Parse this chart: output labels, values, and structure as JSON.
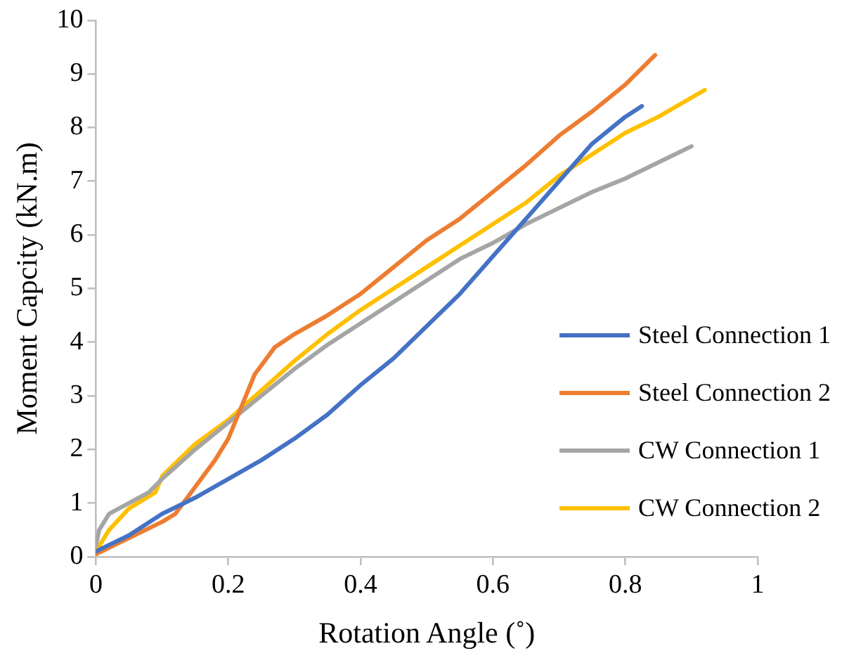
{
  "chart_data": {
    "type": "line",
    "xlabel": "Rotation Angle (˚)",
    "ylabel": "Moment Capcity (kN.m)",
    "xlim": [
      0,
      1
    ],
    "xticks": [
      0,
      0.2,
      0.4,
      0.6,
      0.8,
      1
    ],
    "ylim": [
      0,
      10
    ],
    "yticks": [
      0,
      1,
      2,
      3,
      4,
      5,
      6,
      7,
      8,
      9,
      10
    ],
    "grid": false,
    "legend": "right",
    "marker": "none",
    "line_style": "solid",
    "series": [
      {
        "name": "Steel Connection 1",
        "color": "#4472c4",
        "x": [
          0,
          0.05,
          0.1,
          0.15,
          0.2,
          0.25,
          0.3,
          0.35,
          0.4,
          0.45,
          0.5,
          0.55,
          0.6,
          0.65,
          0.7,
          0.75,
          0.8,
          0.825
        ],
        "values": [
          0.1,
          0.4,
          0.8,
          1.1,
          1.45,
          1.8,
          2.2,
          2.65,
          3.2,
          3.7,
          4.3,
          4.9,
          5.6,
          6.3,
          7.0,
          7.7,
          8.2,
          8.4
        ]
      },
      {
        "name": "Steel Connection 2",
        "color": "#ed7d31",
        "x": [
          0,
          0.05,
          0.1,
          0.12,
          0.15,
          0.18,
          0.2,
          0.22,
          0.24,
          0.27,
          0.3,
          0.35,
          0.4,
          0.45,
          0.5,
          0.55,
          0.6,
          0.65,
          0.7,
          0.75,
          0.8,
          0.845
        ],
        "values": [
          0.05,
          0.35,
          0.65,
          0.8,
          1.3,
          1.8,
          2.2,
          2.8,
          3.4,
          3.9,
          4.15,
          4.5,
          4.9,
          5.4,
          5.9,
          6.3,
          6.8,
          7.3,
          7.85,
          8.3,
          8.8,
          9.35
        ]
      },
      {
        "name": "CW Connection 1",
        "color": "#a5a5a5",
        "x": [
          0,
          0.005,
          0.02,
          0.05,
          0.08,
          0.1,
          0.15,
          0.2,
          0.25,
          0.3,
          0.35,
          0.4,
          0.45,
          0.5,
          0.55,
          0.6,
          0.65,
          0.7,
          0.75,
          0.8,
          0.85,
          0.9
        ],
        "values": [
          0.2,
          0.5,
          0.8,
          1.0,
          1.2,
          1.45,
          2.0,
          2.5,
          3.0,
          3.5,
          3.95,
          4.35,
          4.75,
          5.15,
          5.55,
          5.85,
          6.2,
          6.5,
          6.8,
          7.05,
          7.35,
          7.65
        ]
      },
      {
        "name": "CW Connection 2",
        "color": "#ffc000",
        "x": [
          0,
          0.02,
          0.05,
          0.09,
          0.1,
          0.15,
          0.2,
          0.25,
          0.3,
          0.35,
          0.4,
          0.45,
          0.5,
          0.55,
          0.6,
          0.65,
          0.7,
          0.75,
          0.8,
          0.85,
          0.92
        ],
        "values": [
          0.1,
          0.5,
          0.9,
          1.2,
          1.5,
          2.1,
          2.55,
          3.1,
          3.65,
          4.15,
          4.6,
          5.0,
          5.4,
          5.8,
          6.2,
          6.6,
          7.1,
          7.5,
          7.9,
          8.2,
          8.7
        ]
      }
    ]
  }
}
